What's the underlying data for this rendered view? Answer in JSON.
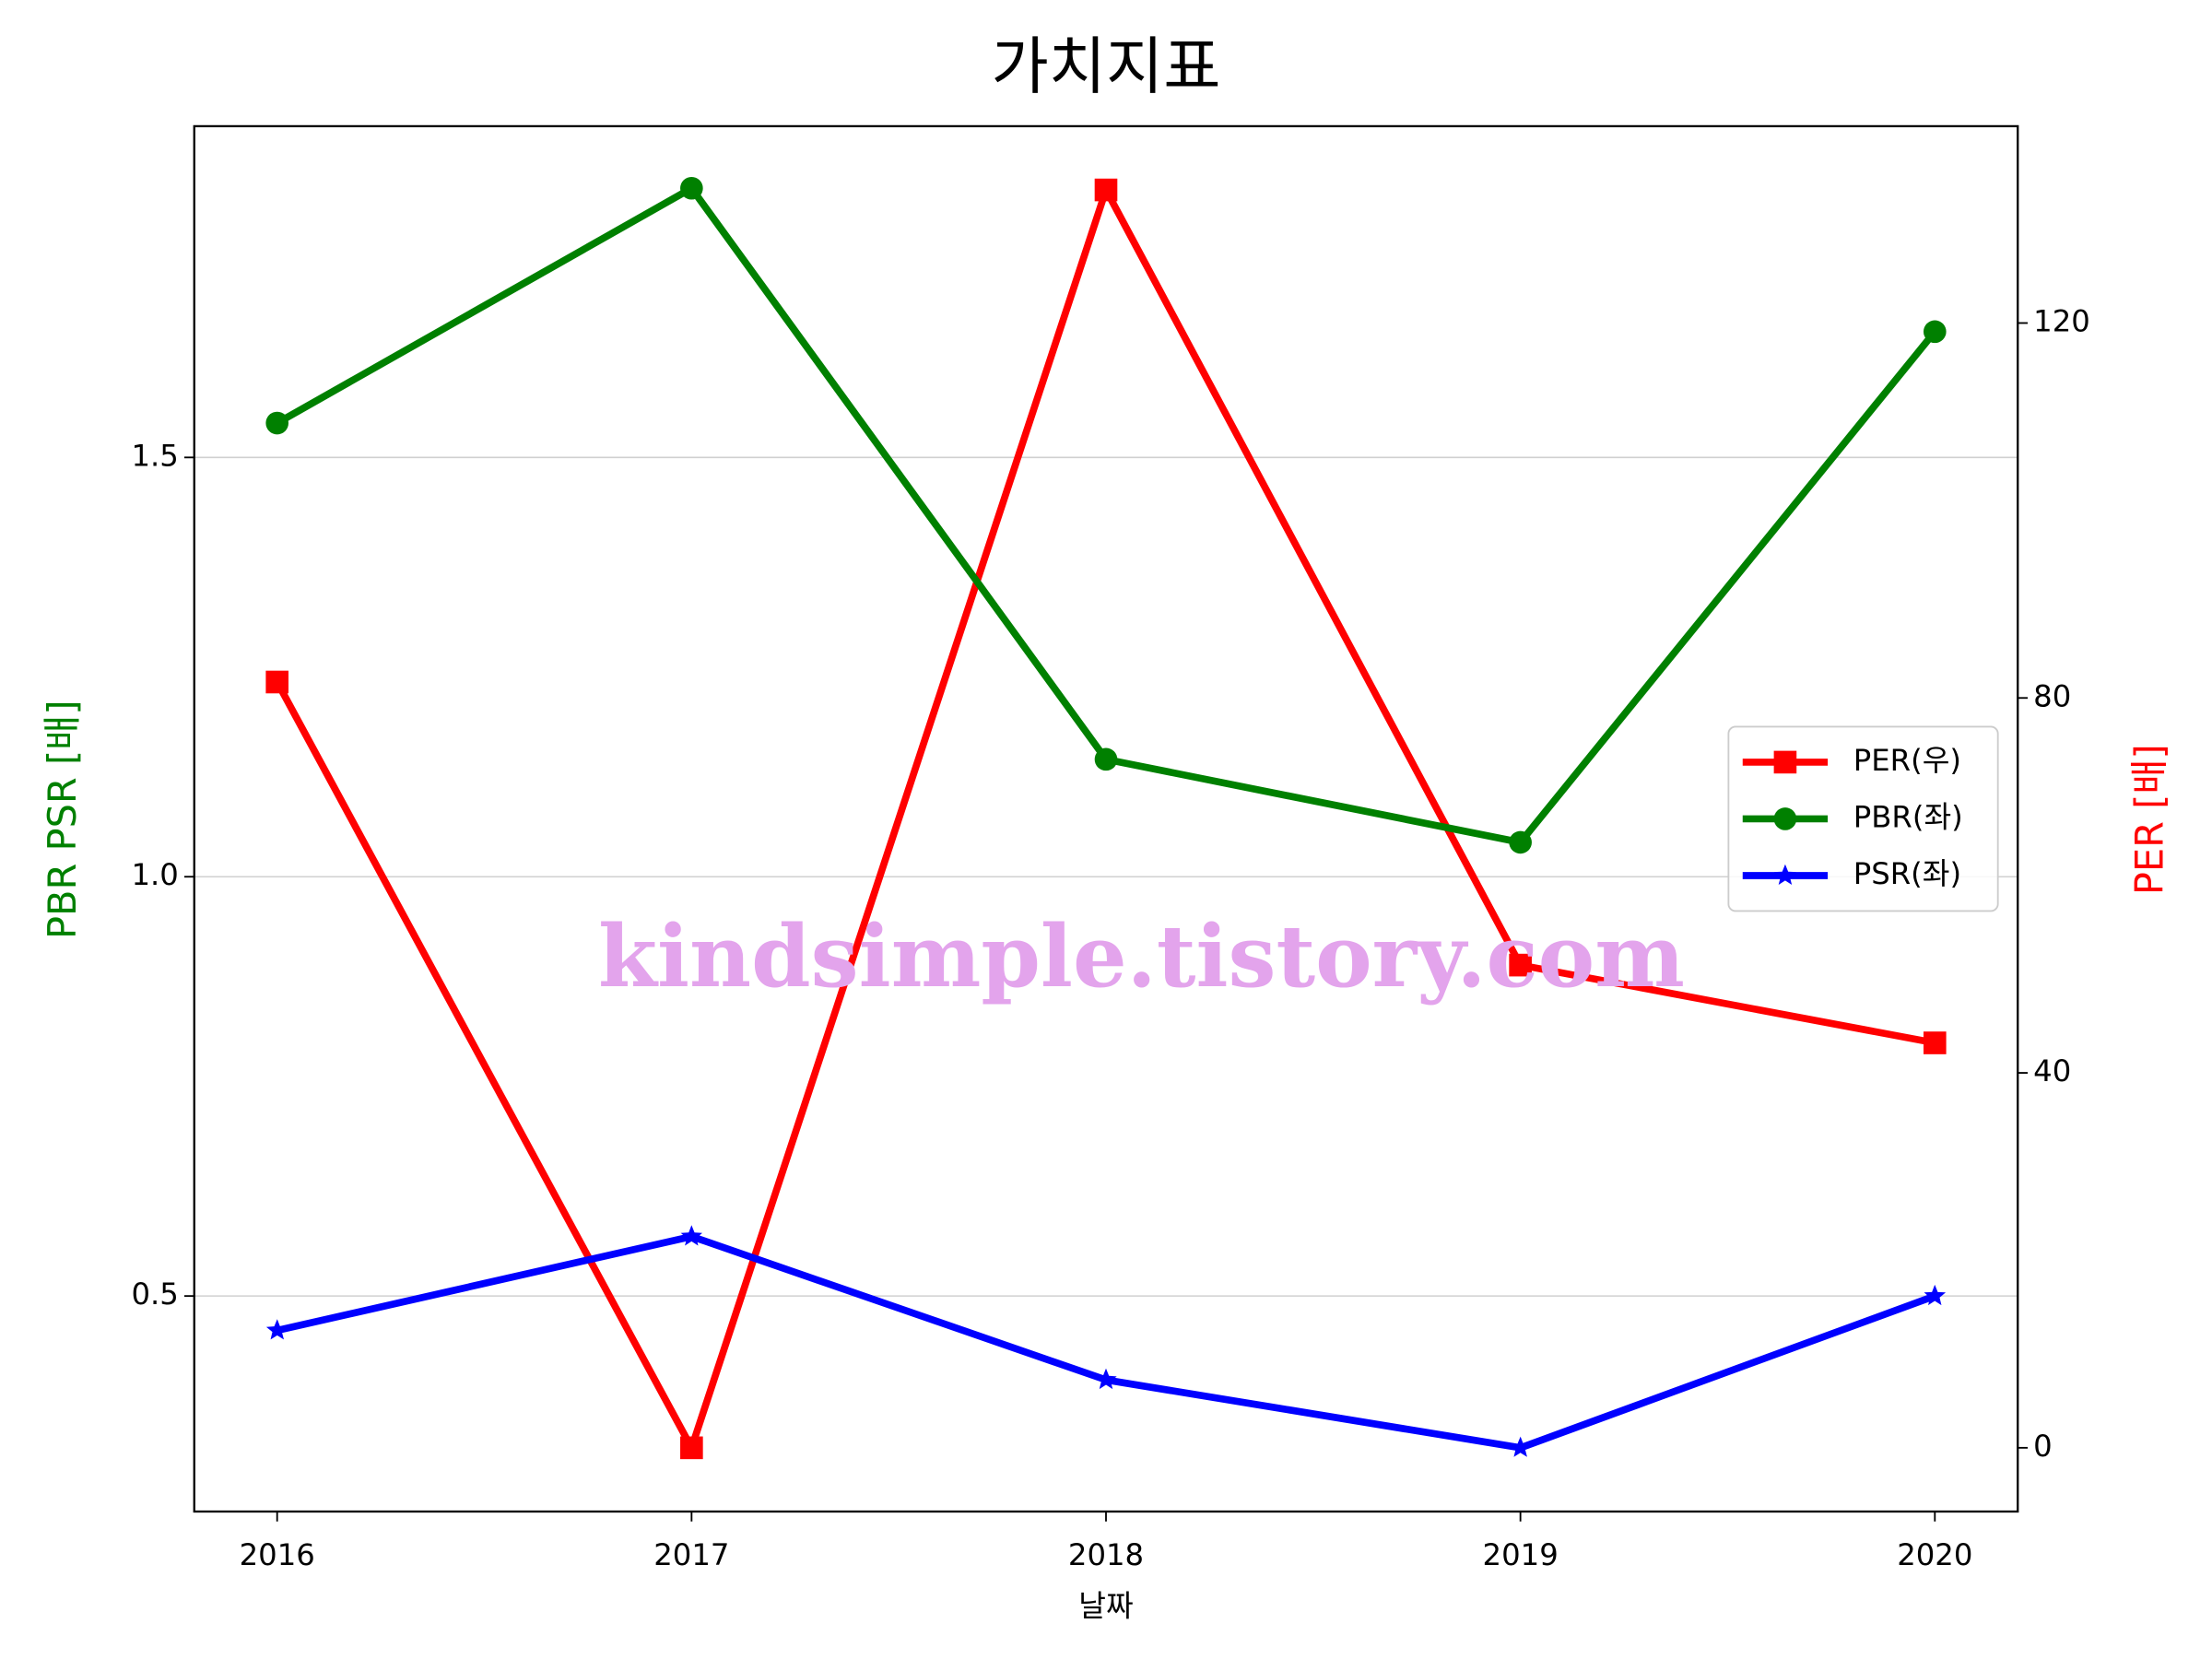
{
  "chart_data": {
    "type": "line",
    "title": "가치지표",
    "xlabel": "날짜",
    "ylabel": "PBR PSR [배]",
    "y2label": "PER [배]",
    "ylabel_color": "#008000",
    "y2label_color": "#ff0000",
    "x": [
      2016,
      2017,
      2018,
      2019,
      2020
    ],
    "xlim": [
      2015.8,
      2020.2
    ],
    "xticks": [
      2016,
      2017,
      2018,
      2019,
      2020
    ],
    "ylim": [
      0.243,
      1.895
    ],
    "yticks": [
      0.5,
      {
        "value": 1,
        "label": "1.0"
      },
      1.5
    ],
    "y2lim": [
      -6.8,
      141
    ],
    "y2ticks": [
      0,
      40,
      80,
      120
    ],
    "grid": true,
    "legend": "center right",
    "watermark": "kindsimple.tistory.com",
    "series": [
      {
        "name": "PER(우)",
        "color": "#ff0000",
        "marker": "square",
        "axis": "y2",
        "values": [
          81.7,
          0,
          134.2,
          51.5,
          43.2
        ]
      },
      {
        "name": "PBR(좌)",
        "color": "#008000",
        "marker": "circle",
        "values": [
          1.541,
          1.821,
          1.14,
          1.041,
          1.65
        ]
      },
      {
        "name": "PSR(좌)",
        "color": "#0000ff",
        "marker": "star",
        "values": [
          0.459,
          0.571,
          0.4,
          0.319,
          0.5
        ]
      }
    ]
  }
}
